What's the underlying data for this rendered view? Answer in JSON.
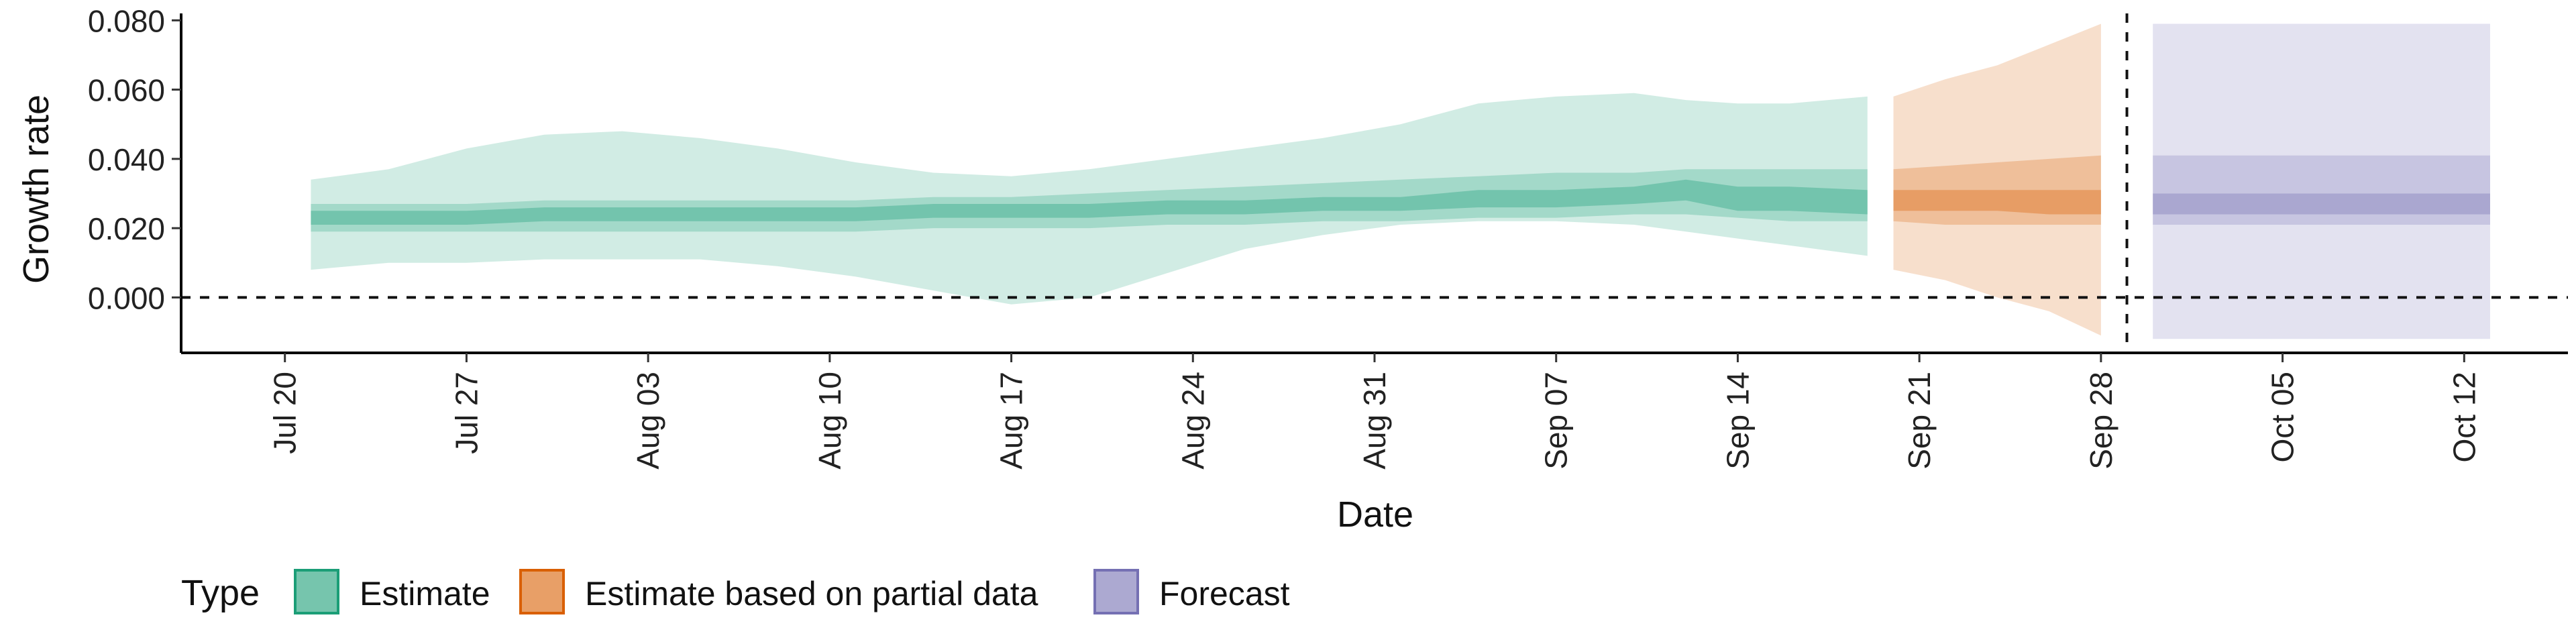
{
  "chart_data": {
    "type": "area",
    "xlabel": "Date",
    "ylabel": "Growth rate",
    "x_range": [
      "2020-07-16",
      "2020-10-16"
    ],
    "ylim": [
      -0.016,
      0.082
    ],
    "y_ticks": [
      0.0,
      0.02,
      0.04,
      0.06,
      0.08
    ],
    "y_tick_labels": [
      "0.000",
      "0.020",
      "0.040",
      "0.060",
      "0.080"
    ],
    "x_ticks": [
      "2020-07-20",
      "2020-07-27",
      "2020-08-03",
      "2020-08-10",
      "2020-08-17",
      "2020-08-24",
      "2020-08-31",
      "2020-09-07",
      "2020-09-14",
      "2020-09-21",
      "2020-09-28",
      "2020-10-05",
      "2020-10-12"
    ],
    "x_tick_labels": [
      "Jul 20",
      "Jul 27",
      "Aug 03",
      "Aug 10",
      "Aug 17",
      "Aug 24",
      "Aug 31",
      "Sep 07",
      "Sep 14",
      "Sep 21",
      "Sep 28",
      "Oct 05",
      "Oct 12"
    ],
    "reference_lines": [
      {
        "axis": "y",
        "value": 0.0,
        "style": "dashed"
      },
      {
        "axis": "x",
        "value": "2020-09-29",
        "style": "dashed"
      }
    ],
    "grid": false,
    "legend": {
      "title": "Type",
      "position": "bottom",
      "entries": [
        "Estimate",
        "Estimate based on partial data",
        "Forecast"
      ]
    },
    "series": [
      {
        "name": "Estimate",
        "color": "#1b9e77",
        "points": [
          {
            "x": "2020-07-21",
            "median": 0.023,
            "q25": 0.021,
            "q75": 0.025,
            "q10": 0.019,
            "q90": 0.027,
            "lower": 0.008,
            "upper": 0.034
          },
          {
            "x": "2020-07-24",
            "median": 0.023,
            "q25": 0.021,
            "q75": 0.025,
            "q10": 0.019,
            "q90": 0.027,
            "lower": 0.01,
            "upper": 0.037
          },
          {
            "x": "2020-07-27",
            "median": 0.023,
            "q25": 0.021,
            "q75": 0.025,
            "q10": 0.019,
            "q90": 0.027,
            "lower": 0.01,
            "upper": 0.043
          },
          {
            "x": "2020-07-30",
            "median": 0.024,
            "q25": 0.022,
            "q75": 0.026,
            "q10": 0.019,
            "q90": 0.028,
            "lower": 0.011,
            "upper": 0.047
          },
          {
            "x": "2020-08-02",
            "median": 0.024,
            "q25": 0.022,
            "q75": 0.026,
            "q10": 0.019,
            "q90": 0.028,
            "lower": 0.011,
            "upper": 0.048
          },
          {
            "x": "2020-08-05",
            "median": 0.024,
            "q25": 0.022,
            "q75": 0.026,
            "q10": 0.019,
            "q90": 0.028,
            "lower": 0.011,
            "upper": 0.046
          },
          {
            "x": "2020-08-08",
            "median": 0.024,
            "q25": 0.022,
            "q75": 0.026,
            "q10": 0.019,
            "q90": 0.028,
            "lower": 0.009,
            "upper": 0.043
          },
          {
            "x": "2020-08-11",
            "median": 0.024,
            "q25": 0.022,
            "q75": 0.026,
            "q10": 0.019,
            "q90": 0.028,
            "lower": 0.006,
            "upper": 0.039
          },
          {
            "x": "2020-08-14",
            "median": 0.025,
            "q25": 0.023,
            "q75": 0.027,
            "q10": 0.02,
            "q90": 0.029,
            "lower": 0.002,
            "upper": 0.036
          },
          {
            "x": "2020-08-17",
            "median": 0.025,
            "q25": 0.023,
            "q75": 0.027,
            "q10": 0.02,
            "q90": 0.029,
            "lower": -0.002,
            "upper": 0.035
          },
          {
            "x": "2020-08-20",
            "median": 0.025,
            "q25": 0.023,
            "q75": 0.027,
            "q10": 0.02,
            "q90": 0.03,
            "lower": 0.0,
            "upper": 0.037
          },
          {
            "x": "2020-08-23",
            "median": 0.026,
            "q25": 0.024,
            "q75": 0.028,
            "q10": 0.021,
            "q90": 0.031,
            "lower": 0.007,
            "upper": 0.04
          },
          {
            "x": "2020-08-26",
            "median": 0.026,
            "q25": 0.024,
            "q75": 0.028,
            "q10": 0.021,
            "q90": 0.032,
            "lower": 0.014,
            "upper": 0.043
          },
          {
            "x": "2020-08-29",
            "median": 0.027,
            "q25": 0.025,
            "q75": 0.029,
            "q10": 0.022,
            "q90": 0.033,
            "lower": 0.018,
            "upper": 0.046
          },
          {
            "x": "2020-09-01",
            "median": 0.027,
            "q25": 0.025,
            "q75": 0.029,
            "q10": 0.022,
            "q90": 0.034,
            "lower": 0.021,
            "upper": 0.05
          },
          {
            "x": "2020-09-04",
            "median": 0.029,
            "q25": 0.026,
            "q75": 0.031,
            "q10": 0.023,
            "q90": 0.035,
            "lower": 0.022,
            "upper": 0.056
          },
          {
            "x": "2020-09-07",
            "median": 0.029,
            "q25": 0.026,
            "q75": 0.031,
            "q10": 0.023,
            "q90": 0.036,
            "lower": 0.022,
            "upper": 0.058
          },
          {
            "x": "2020-09-10",
            "median": 0.03,
            "q25": 0.027,
            "q75": 0.032,
            "q10": 0.024,
            "q90": 0.036,
            "lower": 0.021,
            "upper": 0.059
          },
          {
            "x": "2020-09-12",
            "median": 0.032,
            "q25": 0.028,
            "q75": 0.034,
            "q10": 0.024,
            "q90": 0.037,
            "lower": 0.019,
            "upper": 0.057
          },
          {
            "x": "2020-09-14",
            "median": 0.026,
            "q25": 0.025,
            "q75": 0.032,
            "q10": 0.023,
            "q90": 0.037,
            "lower": 0.017,
            "upper": 0.056
          },
          {
            "x": "2020-09-16",
            "median": 0.029,
            "q25": 0.025,
            "q75": 0.032,
            "q10": 0.022,
            "q90": 0.037,
            "lower": 0.015,
            "upper": 0.056
          },
          {
            "x": "2020-09-19",
            "median": 0.027,
            "q25": 0.024,
            "q75": 0.031,
            "q10": 0.022,
            "q90": 0.037,
            "lower": 0.012,
            "upper": 0.058
          }
        ]
      },
      {
        "name": "Estimate based on partial data",
        "color": "#d95f02",
        "points": [
          {
            "x": "2020-09-20",
            "median": 0.028,
            "q25": 0.025,
            "q75": 0.031,
            "q10": 0.022,
            "q90": 0.037,
            "lower": 0.008,
            "upper": 0.058
          },
          {
            "x": "2020-09-22",
            "median": 0.028,
            "q25": 0.025,
            "q75": 0.031,
            "q10": 0.021,
            "q90": 0.038,
            "lower": 0.005,
            "upper": 0.063
          },
          {
            "x": "2020-09-24",
            "median": 0.027,
            "q25": 0.025,
            "q75": 0.031,
            "q10": 0.021,
            "q90": 0.039,
            "lower": 0.0,
            "upper": 0.067
          },
          {
            "x": "2020-09-26",
            "median": 0.027,
            "q25": 0.024,
            "q75": 0.031,
            "q10": 0.021,
            "q90": 0.04,
            "lower": -0.004,
            "upper": 0.073
          },
          {
            "x": "2020-09-28",
            "median": 0.027,
            "q25": 0.024,
            "q75": 0.031,
            "q10": 0.021,
            "q90": 0.041,
            "lower": -0.011,
            "upper": 0.079
          }
        ]
      },
      {
        "name": "Forecast",
        "color": "#7570b3",
        "points": [
          {
            "x": "2020-09-30",
            "median": 0.027,
            "q25": 0.024,
            "q75": 0.03,
            "q10": 0.021,
            "q90": 0.041,
            "lower": -0.012,
            "upper": 0.079
          },
          {
            "x": "2020-10-13",
            "median": 0.027,
            "q25": 0.024,
            "q75": 0.03,
            "q10": 0.021,
            "q90": 0.041,
            "lower": -0.012,
            "upper": 0.079
          }
        ]
      }
    ]
  }
}
